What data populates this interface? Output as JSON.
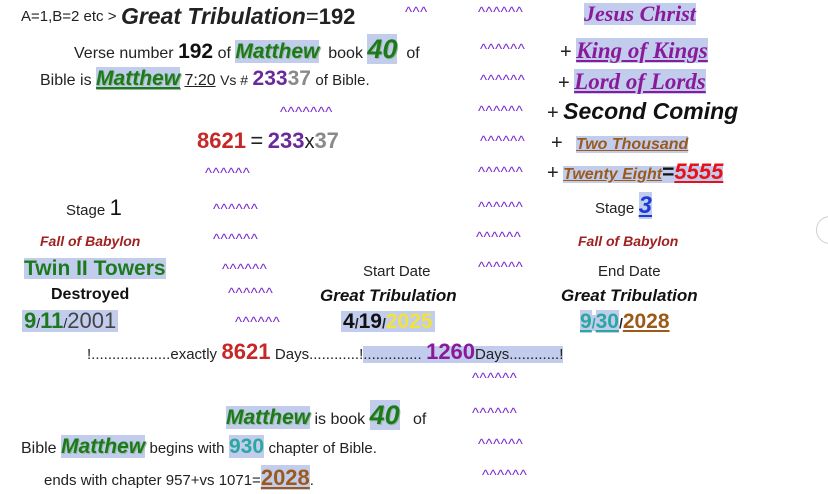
{
  "header": {
    "prefix": "A=1,B=2 etc >",
    "great_tribulation": "Great Tribulation",
    "eq": "=",
    "value": "192",
    "carets": "^^^"
  },
  "verse_line": {
    "pre": "Verse number",
    "num": "192",
    "of": "of",
    "book_name": "Matthew",
    "book_word": "book",
    "book_num": "40",
    "of2": "of"
  },
  "bible_line": {
    "pre": "Bible is",
    "book_name": "Matthew",
    "ref": "7:20",
    "vs": "Vs #",
    "part1": "233",
    "part2": "37",
    "post": "of Bible."
  },
  "carets_mid1": "^^^^^^^",
  "equation": {
    "total": "8621",
    "eq": "=",
    "a": "233",
    "x": "x",
    "b": "37"
  },
  "carets_mid2": "^^^^^^",
  "left_stage": {
    "stage_label": "Stage",
    "stage_num": "1",
    "fall": "Fall of Babylon",
    "towers": "Twin II Towers",
    "destroyed": "Destroyed",
    "date_m": "9",
    "date_d": "11",
    "date_y": "2001",
    "sep": "/"
  },
  "mid_carets": [
    "^^^^^^",
    "^^^^^^",
    "^^^^^^",
    "^^^^^^",
    "^^^^^^"
  ],
  "start": {
    "label": "Start Date",
    "title": "Great Tribulation",
    "m": "4",
    "d": "19",
    "y": "2025",
    "sep": "/"
  },
  "end": {
    "label": "End Date",
    "title": "Great Tribulation",
    "m": "9",
    "d": "30",
    "y": "2028",
    "sep": "/"
  },
  "right": {
    "carets": [
      "^^^^^^",
      "^^^^^^",
      "^^^^^^",
      "^^^^^^",
      "^^^^^^",
      "^^^^^^",
      "^^^^^^",
      "^^^^^^",
      "^^^^^^"
    ],
    "jesus": "Jesus Christ",
    "plus": "+",
    "king": "King of Kings",
    "lord": "Lord of Lords",
    "coming": "Second Coming",
    "two_thousand": "Two Thousand",
    "twenty_eight": "Twenty Eight",
    "eq": "=",
    "sum": "5555",
    "stage_label": "Stage",
    "stage_num": "3",
    "fall": "Fall of Babylon"
  },
  "days_line": {
    "dots1": "!...................exactly",
    "days": "8621",
    "days_word": "Days............!",
    "dots2": "..............",
    "days2": "1260",
    "days_word2": "Days............!"
  },
  "carets_low": [
    "^^^^^^",
    "^^^^^^",
    "^^^^^^",
    "^^^^^^"
  ],
  "book_line": {
    "name": "Matthew",
    "is_book": "is book",
    "num": "40",
    "of": "of"
  },
  "begins_line": {
    "pre": "Bible",
    "name": "Matthew",
    "begins": "begins with",
    "num": "930",
    "post": "chapter of Bible."
  },
  "ends_line": {
    "pre": "ends with chapter 957+vs 1071=",
    "year": "2028",
    "post": "."
  }
}
